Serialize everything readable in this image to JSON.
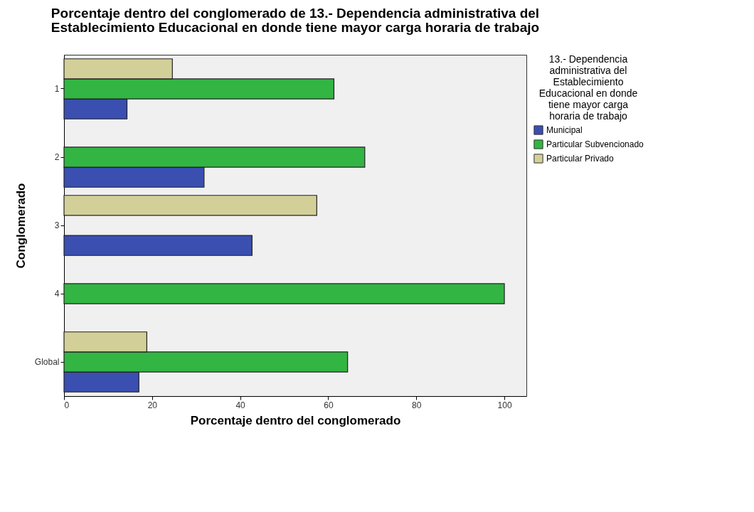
{
  "chart_data": {
    "type": "bar",
    "orientation": "horizontal",
    "title": "Porcentaje dentro del conglomerado de 13.- Dependencia administrativa del Establecimiento Educacional en donde tiene mayor carga horaria de trabajo",
    "xlabel": "Porcentaje dentro del conglomerado",
    "ylabel": "Conglomerado",
    "legend_title": "13.- Dependencia administrativa del Establecimiento Educacional en donde tiene mayor carga horaria de trabajo",
    "categories": [
      "1",
      "2",
      "3",
      "4",
      "Global"
    ],
    "series": [
      {
        "name": "Municipal",
        "color": "#3a4fb0",
        "values": [
          14.3,
          31.8,
          42.7,
          null,
          17.0
        ]
      },
      {
        "name": "Particular Subvencionado",
        "color": "#32b543",
        "values": [
          61.3,
          68.3,
          null,
          100,
          64.4
        ]
      },
      {
        "name": "Particular Privado",
        "color": "#d3cf98",
        "values": [
          24.6,
          null,
          57.4,
          null,
          18.8
        ]
      }
    ],
    "xlim": [
      0,
      105
    ],
    "xticks": [
      0,
      20,
      40,
      60,
      80,
      100
    ],
    "grid": false,
    "legend": "right"
  }
}
